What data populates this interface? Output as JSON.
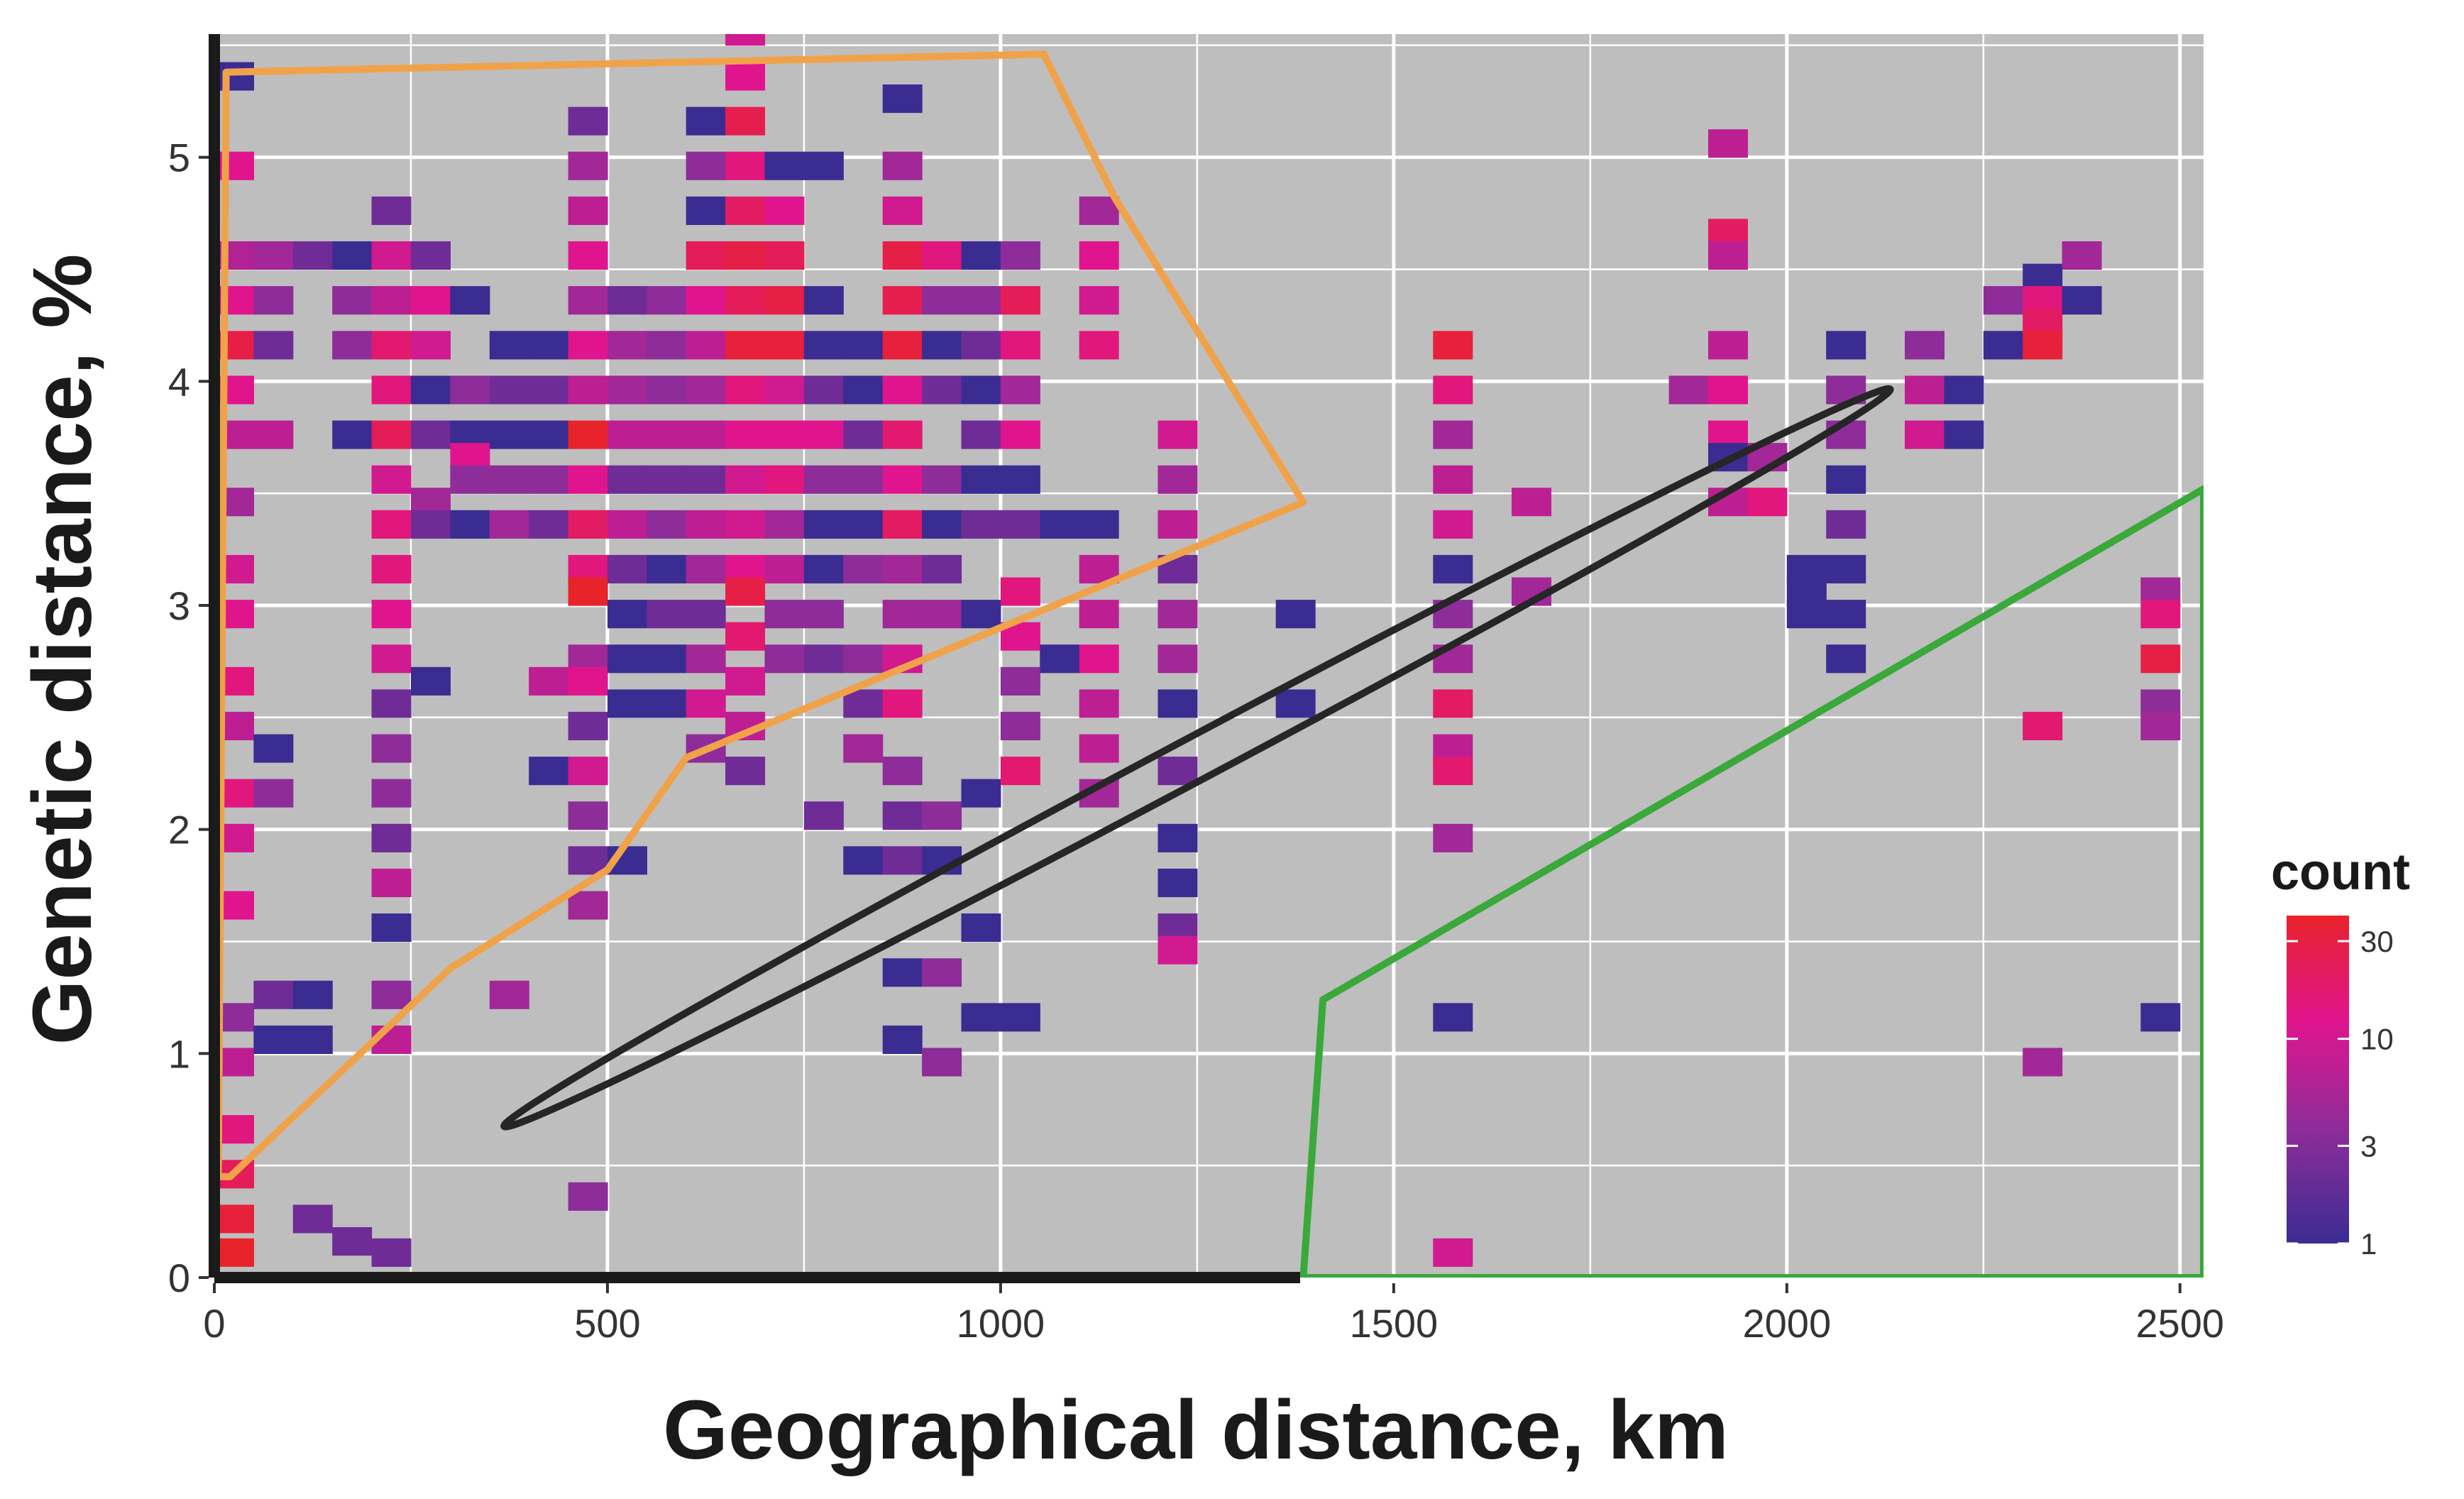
{
  "chart_data": {
    "type": "heatmap",
    "xlabel": "Geographical distance, km",
    "ylabel": "Genetic distance, %",
    "xlim": [
      0,
      2530
    ],
    "ylim": [
      0,
      5.55
    ],
    "x_ticks": [
      0,
      500,
      1000,
      1500,
      2000,
      2500
    ],
    "y_ticks": [
      0,
      1,
      2,
      3,
      4,
      5
    ],
    "grid": true,
    "background": "#bebebe",
    "bin_width_km": 50,
    "bin_height_pct": 0.125,
    "legend": {
      "title": "count",
      "placement": "right",
      "scale": "log",
      "ticks": [
        1,
        3,
        10,
        30
      ],
      "colors": [
        "#3b2c92",
        "#8e2c9a",
        "#e0158e",
        "#e8232a"
      ]
    },
    "cells": [
      [
        0,
        5.3,
        1
      ],
      [
        0,
        4.9,
        10
      ],
      [
        0,
        4.5,
        5
      ],
      [
        0,
        4.3,
        10
      ],
      [
        0,
        4.1,
        22
      ],
      [
        0,
        3.9,
        10
      ],
      [
        0,
        3.7,
        6
      ],
      [
        0,
        3.4,
        4
      ],
      [
        0,
        3.1,
        8
      ],
      [
        0,
        2.9,
        10
      ],
      [
        0,
        2.6,
        12
      ],
      [
        0,
        2.4,
        6
      ],
      [
        0,
        2.1,
        12
      ],
      [
        0,
        1.9,
        8
      ],
      [
        0,
        1.6,
        10
      ],
      [
        0,
        1.1,
        3
      ],
      [
        0,
        0.9,
        6
      ],
      [
        0,
        0.6,
        12
      ],
      [
        0,
        0.4,
        18
      ],
      [
        0,
        0.2,
        25
      ],
      [
        0,
        0.05,
        34
      ],
      [
        50,
        4.5,
        4
      ],
      [
        50,
        4.3,
        3
      ],
      [
        50,
        4.1,
        2
      ],
      [
        50,
        3.7,
        6
      ],
      [
        50,
        2.3,
        1
      ],
      [
        50,
        2.1,
        3
      ],
      [
        50,
        1.2,
        2
      ],
      [
        50,
        1.0,
        1
      ],
      [
        100,
        4.5,
        2
      ],
      [
        100,
        1.2,
        1
      ],
      [
        100,
        1.0,
        1
      ],
      [
        100,
        0.2,
        2
      ],
      [
        150,
        4.5,
        1
      ],
      [
        150,
        4.3,
        3
      ],
      [
        150,
        4.1,
        3
      ],
      [
        150,
        3.7,
        1
      ],
      [
        150,
        0.1,
        2
      ],
      [
        200,
        4.7,
        2
      ],
      [
        200,
        4.5,
        8
      ],
      [
        200,
        4.3,
        6
      ],
      [
        200,
        4.1,
        14
      ],
      [
        200,
        3.9,
        12
      ],
      [
        200,
        3.7,
        18
      ],
      [
        200,
        3.5,
        8
      ],
      [
        200,
        3.3,
        12
      ],
      [
        200,
        3.1,
        12
      ],
      [
        200,
        2.9,
        10
      ],
      [
        200,
        2.7,
        8
      ],
      [
        200,
        2.5,
        2
      ],
      [
        200,
        2.3,
        3
      ],
      [
        200,
        2.1,
        3
      ],
      [
        200,
        1.9,
        2
      ],
      [
        200,
        1.7,
        6
      ],
      [
        200,
        1.5,
        1
      ],
      [
        200,
        1.2,
        3
      ],
      [
        200,
        1.0,
        6
      ],
      [
        200,
        0.05,
        2
      ],
      [
        250,
        4.5,
        2
      ],
      [
        250,
        4.3,
        10
      ],
      [
        250,
        4.1,
        8
      ],
      [
        250,
        3.9,
        1
      ],
      [
        250,
        3.7,
        2
      ],
      [
        250,
        3.4,
        4
      ],
      [
        250,
        3.3,
        2
      ],
      [
        250,
        2.6,
        1
      ],
      [
        300,
        4.3,
        1
      ],
      [
        300,
        3.9,
        3
      ],
      [
        300,
        3.7,
        1
      ],
      [
        300,
        3.6,
        10
      ],
      [
        300,
        3.5,
        3
      ],
      [
        300,
        3.3,
        1
      ],
      [
        350,
        4.1,
        1
      ],
      [
        350,
        3.9,
        2
      ],
      [
        350,
        3.7,
        1
      ],
      [
        350,
        3.5,
        3
      ],
      [
        350,
        3.3,
        4
      ],
      [
        350,
        1.2,
        4
      ],
      [
        400,
        4.1,
        1
      ],
      [
        400,
        3.9,
        2
      ],
      [
        400,
        3.7,
        1
      ],
      [
        400,
        3.5,
        3
      ],
      [
        400,
        3.3,
        2
      ],
      [
        400,
        2.6,
        6
      ],
      [
        400,
        2.2,
        1
      ],
      [
        450,
        5.1,
        2
      ],
      [
        450,
        4.9,
        4
      ],
      [
        450,
        4.7,
        6
      ],
      [
        450,
        4.5,
        10
      ],
      [
        450,
        4.3,
        4
      ],
      [
        450,
        4.1,
        10
      ],
      [
        450,
        3.9,
        6
      ],
      [
        450,
        3.7,
        30
      ],
      [
        450,
        3.5,
        10
      ],
      [
        450,
        3.3,
        16
      ],
      [
        450,
        3.1,
        12
      ],
      [
        450,
        3.0,
        30
      ],
      [
        450,
        2.7,
        4
      ],
      [
        450,
        2.6,
        10
      ],
      [
        450,
        2.4,
        2
      ],
      [
        450,
        2.2,
        8
      ],
      [
        450,
        2.0,
        3
      ],
      [
        450,
        1.8,
        2
      ],
      [
        450,
        1.6,
        4
      ],
      [
        450,
        0.3,
        3
      ],
      [
        500,
        4.3,
        2
      ],
      [
        500,
        4.1,
        4
      ],
      [
        500,
        3.9,
        4
      ],
      [
        500,
        3.7,
        6
      ],
      [
        500,
        3.5,
        2
      ],
      [
        500,
        3.3,
        6
      ],
      [
        500,
        3.1,
        2
      ],
      [
        500,
        2.9,
        1
      ],
      [
        500,
        2.7,
        1
      ],
      [
        500,
        2.5,
        1
      ],
      [
        500,
        1.8,
        1
      ],
      [
        550,
        4.3,
        3
      ],
      [
        550,
        4.1,
        3
      ],
      [
        550,
        3.9,
        3
      ],
      [
        550,
        3.7,
        6
      ],
      [
        550,
        3.5,
        2
      ],
      [
        550,
        3.3,
        3
      ],
      [
        550,
        3.1,
        1
      ],
      [
        550,
        2.9,
        2
      ],
      [
        550,
        2.7,
        1
      ],
      [
        550,
        2.5,
        1
      ],
      [
        600,
        5.1,
        1
      ],
      [
        600,
        4.9,
        3
      ],
      [
        600,
        4.7,
        1
      ],
      [
        600,
        4.5,
        18
      ],
      [
        600,
        4.3,
        10
      ],
      [
        600,
        4.1,
        6
      ],
      [
        600,
        3.9,
        4
      ],
      [
        600,
        3.7,
        6
      ],
      [
        600,
        3.5,
        2
      ],
      [
        600,
        3.3,
        6
      ],
      [
        600,
        3.1,
        4
      ],
      [
        600,
        2.9,
        2
      ],
      [
        600,
        2.7,
        4
      ],
      [
        600,
        2.5,
        8
      ],
      [
        600,
        2.3,
        3
      ],
      [
        650,
        5.5,
        8
      ],
      [
        650,
        5.3,
        10
      ],
      [
        650,
        5.1,
        20
      ],
      [
        650,
        4.9,
        12
      ],
      [
        650,
        4.7,
        16
      ],
      [
        650,
        4.5,
        22
      ],
      [
        650,
        4.3,
        18
      ],
      [
        650,
        4.1,
        25
      ],
      [
        650,
        3.9,
        12
      ],
      [
        650,
        3.7,
        10
      ],
      [
        650,
        3.5,
        8
      ],
      [
        650,
        3.3,
        8
      ],
      [
        650,
        3.1,
        10
      ],
      [
        650,
        3.0,
        22
      ],
      [
        650,
        2.8,
        14
      ],
      [
        650,
        2.6,
        8
      ],
      [
        650,
        2.4,
        6
      ],
      [
        650,
        2.2,
        2
      ],
      [
        700,
        4.9,
        1
      ],
      [
        700,
        4.7,
        10
      ],
      [
        700,
        4.5,
        18
      ],
      [
        700,
        4.3,
        22
      ],
      [
        700,
        4.1,
        25
      ],
      [
        700,
        3.9,
        8
      ],
      [
        700,
        3.7,
        10
      ],
      [
        700,
        3.5,
        12
      ],
      [
        700,
        3.3,
        4
      ],
      [
        700,
        3.1,
        6
      ],
      [
        700,
        2.9,
        3
      ],
      [
        700,
        2.7,
        3
      ],
      [
        750,
        4.9,
        1
      ],
      [
        750,
        4.3,
        1
      ],
      [
        750,
        4.1,
        1
      ],
      [
        750,
        3.9,
        2
      ],
      [
        750,
        3.7,
        10
      ],
      [
        750,
        3.5,
        3
      ],
      [
        750,
        3.3,
        1
      ],
      [
        750,
        3.1,
        1
      ],
      [
        750,
        2.9,
        3
      ],
      [
        750,
        2.7,
        2
      ],
      [
        750,
        2.0,
        2
      ],
      [
        800,
        4.1,
        1
      ],
      [
        800,
        3.9,
        1
      ],
      [
        800,
        3.7,
        2
      ],
      [
        800,
        3.5,
        3
      ],
      [
        800,
        3.3,
        1
      ],
      [
        800,
        3.1,
        3
      ],
      [
        800,
        2.7,
        3
      ],
      [
        800,
        2.5,
        2
      ],
      [
        800,
        2.3,
        4
      ],
      [
        800,
        1.8,
        1
      ],
      [
        850,
        5.2,
        1
      ],
      [
        850,
        4.9,
        4
      ],
      [
        850,
        4.7,
        8
      ],
      [
        850,
        4.5,
        22
      ],
      [
        850,
        4.3,
        20
      ],
      [
        850,
        4.1,
        25
      ],
      [
        850,
        3.9,
        10
      ],
      [
        850,
        3.7,
        14
      ],
      [
        850,
        3.5,
        10
      ],
      [
        850,
        3.3,
        16
      ],
      [
        850,
        3.1,
        4
      ],
      [
        850,
        2.9,
        4
      ],
      [
        850,
        2.7,
        8
      ],
      [
        850,
        2.5,
        12
      ],
      [
        850,
        2.2,
        3
      ],
      [
        850,
        2.0,
        2
      ],
      [
        850,
        1.8,
        2
      ],
      [
        850,
        1.3,
        1
      ],
      [
        850,
        1.0,
        1
      ],
      [
        900,
        4.5,
        12
      ],
      [
        900,
        4.3,
        3
      ],
      [
        900,
        4.1,
        1
      ],
      [
        900,
        3.9,
        2
      ],
      [
        900,
        3.5,
        3
      ],
      [
        900,
        3.3,
        1
      ],
      [
        900,
        3.1,
        2
      ],
      [
        900,
        2.9,
        4
      ],
      [
        900,
        2.0,
        3
      ],
      [
        900,
        1.8,
        1
      ],
      [
        900,
        1.3,
        3
      ],
      [
        900,
        0.9,
        3
      ],
      [
        950,
        4.5,
        1
      ],
      [
        950,
        4.3,
        3
      ],
      [
        950,
        4.1,
        2
      ],
      [
        950,
        3.9,
        1
      ],
      [
        950,
        3.7,
        2
      ],
      [
        950,
        3.5,
        1
      ],
      [
        950,
        3.3,
        2
      ],
      [
        950,
        2.9,
        1
      ],
      [
        950,
        2.1,
        1
      ],
      [
        950,
        1.5,
        1
      ],
      [
        950,
        1.1,
        1
      ],
      [
        1000,
        4.5,
        3
      ],
      [
        1000,
        4.3,
        18
      ],
      [
        1000,
        4.1,
        12
      ],
      [
        1000,
        3.9,
        4
      ],
      [
        1000,
        3.7,
        10
      ],
      [
        1000,
        3.5,
        1
      ],
      [
        1000,
        3.3,
        2
      ],
      [
        1000,
        3.0,
        12
      ],
      [
        1000,
        2.8,
        10
      ],
      [
        1000,
        2.6,
        3
      ],
      [
        1000,
        2.4,
        3
      ],
      [
        1000,
        2.2,
        14
      ],
      [
        1000,
        1.1,
        1
      ],
      [
        1050,
        3.3,
        1
      ],
      [
        1050,
        2.7,
        1
      ],
      [
        1100,
        4.7,
        4
      ],
      [
        1100,
        4.5,
        10
      ],
      [
        1100,
        4.3,
        8
      ],
      [
        1100,
        4.1,
        12
      ],
      [
        1100,
        3.3,
        1
      ],
      [
        1100,
        3.1,
        6
      ],
      [
        1100,
        2.9,
        6
      ],
      [
        1100,
        2.7,
        10
      ],
      [
        1100,
        2.5,
        6
      ],
      [
        1100,
        2.3,
        6
      ],
      [
        1100,
        2.1,
        4
      ],
      [
        1200,
        3.7,
        8
      ],
      [
        1200,
        3.5,
        4
      ],
      [
        1200,
        3.3,
        6
      ],
      [
        1200,
        3.1,
        2
      ],
      [
        1200,
        2.9,
        4
      ],
      [
        1200,
        2.7,
        4
      ],
      [
        1200,
        2.5,
        1
      ],
      [
        1200,
        2.2,
        2
      ],
      [
        1200,
        1.9,
        1
      ],
      [
        1200,
        1.7,
        1
      ],
      [
        1200,
        1.5,
        2
      ],
      [
        1200,
        1.4,
        8
      ],
      [
        1350,
        2.9,
        1
      ],
      [
        1350,
        2.5,
        1
      ],
      [
        1550,
        4.1,
        25
      ],
      [
        1550,
        3.9,
        12
      ],
      [
        1550,
        3.7,
        4
      ],
      [
        1550,
        3.5,
        6
      ],
      [
        1550,
        3.3,
        8
      ],
      [
        1550,
        3.1,
        1
      ],
      [
        1550,
        2.9,
        3
      ],
      [
        1550,
        2.7,
        4
      ],
      [
        1550,
        2.5,
        16
      ],
      [
        1550,
        2.3,
        6
      ],
      [
        1550,
        2.2,
        14
      ],
      [
        1550,
        1.9,
        4
      ],
      [
        1550,
        1.1,
        1
      ],
      [
        1550,
        0.05,
        8
      ],
      [
        1650,
        3.4,
        6
      ],
      [
        1650,
        3.0,
        4
      ],
      [
        1850,
        3.9,
        4
      ],
      [
        1900,
        5.0,
        6
      ],
      [
        1900,
        4.6,
        16
      ],
      [
        1900,
        4.5,
        6
      ],
      [
        1900,
        4.1,
        6
      ],
      [
        1900,
        3.9,
        10
      ],
      [
        1900,
        3.7,
        10
      ],
      [
        1900,
        3.6,
        1
      ],
      [
        1900,
        3.4,
        6
      ],
      [
        1950,
        3.6,
        4
      ],
      [
        1950,
        3.4,
        12
      ],
      [
        2000,
        3.1,
        1
      ],
      [
        2000,
        3.0,
        1
      ],
      [
        2000,
        2.9,
        1
      ],
      [
        2050,
        4.1,
        1
      ],
      [
        2050,
        3.9,
        3
      ],
      [
        2050,
        3.7,
        3
      ],
      [
        2050,
        3.5,
        1
      ],
      [
        2050,
        3.3,
        2
      ],
      [
        2050,
        3.1,
        1
      ],
      [
        2050,
        2.9,
        1
      ],
      [
        2050,
        2.7,
        1
      ],
      [
        2150,
        4.1,
        3
      ],
      [
        2150,
        3.9,
        6
      ],
      [
        2150,
        3.7,
        8
      ],
      [
        2200,
        3.9,
        1
      ],
      [
        2200,
        3.7,
        1
      ],
      [
        2250,
        4.3,
        3
      ],
      [
        2250,
        4.1,
        1
      ],
      [
        2300,
        4.4,
        1
      ],
      [
        2300,
        4.3,
        12
      ],
      [
        2300,
        4.2,
        16
      ],
      [
        2300,
        4.1,
        25
      ],
      [
        2300,
        2.4,
        14
      ],
      [
        2300,
        0.9,
        4
      ],
      [
        2350,
        4.5,
        4
      ],
      [
        2350,
        4.3,
        1
      ],
      [
        2450,
        3.0,
        4
      ],
      [
        2450,
        2.9,
        12
      ],
      [
        2450,
        2.7,
        22
      ],
      [
        2450,
        2.5,
        3
      ],
      [
        2450,
        2.4,
        4
      ],
      [
        2450,
        1.1,
        1
      ]
    ],
    "annotations": [
      {
        "shape": "polygon",
        "color": "#f0a24a",
        "points": [
          [
            5,
            0.45
          ],
          [
            15,
            5.38
          ],
          [
            1055,
            5.46
          ],
          [
            1145,
            4.82
          ],
          [
            1385,
            3.46
          ],
          [
            600,
            2.32
          ],
          [
            500,
            1.82
          ],
          [
            300,
            1.38
          ],
          [
            20,
            0.45
          ]
        ]
      },
      {
        "shape": "ellipse",
        "color": "#262626",
        "center": [
          1250,
          2.32
        ],
        "rx": 1280,
        "ry": 0.32,
        "angle_deg": -58
      },
      {
        "shape": "polygon",
        "color": "#3aa83a",
        "points": [
          [
            1385,
            0
          ],
          [
            1410,
            1.24
          ],
          [
            2530,
            3.52
          ],
          [
            2530,
            0
          ]
        ]
      }
    ]
  }
}
